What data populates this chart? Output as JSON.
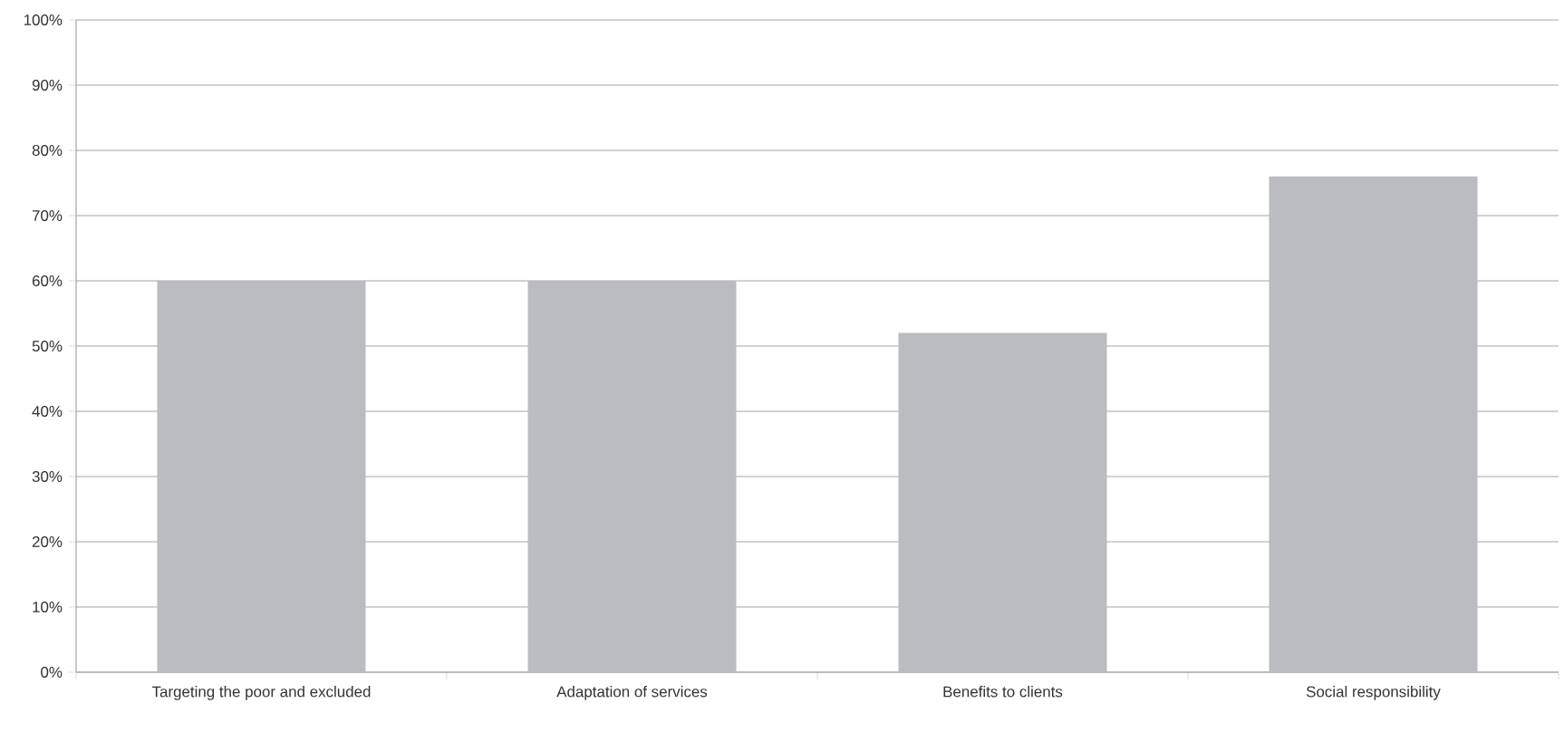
{
  "chart_data": {
    "type": "bar",
    "categories": [
      "Targeting the poor and excluded",
      "Adaptation of services",
      "Benefits to clients",
      "Social responsibility"
    ],
    "values": [
      60,
      60,
      52,
      76
    ],
    "color": "#bbbcc0",
    "ylim": [
      0,
      100
    ],
    "yticks": [
      {
        "value": 0,
        "label": "0%"
      },
      {
        "value": 10,
        "label": "10%"
      },
      {
        "value": 20,
        "label": "20%"
      },
      {
        "value": 30,
        "label": "30%"
      },
      {
        "value": 40,
        "label": "40%"
      },
      {
        "value": 50,
        "label": "50%"
      },
      {
        "value": 60,
        "label": "60%"
      },
      {
        "value": 70,
        "label": "70%"
      },
      {
        "value": 80,
        "label": "80%"
      },
      {
        "value": 90,
        "label": "90%"
      },
      {
        "value": 100,
        "label": "100%"
      }
    ],
    "grid": "y"
  }
}
